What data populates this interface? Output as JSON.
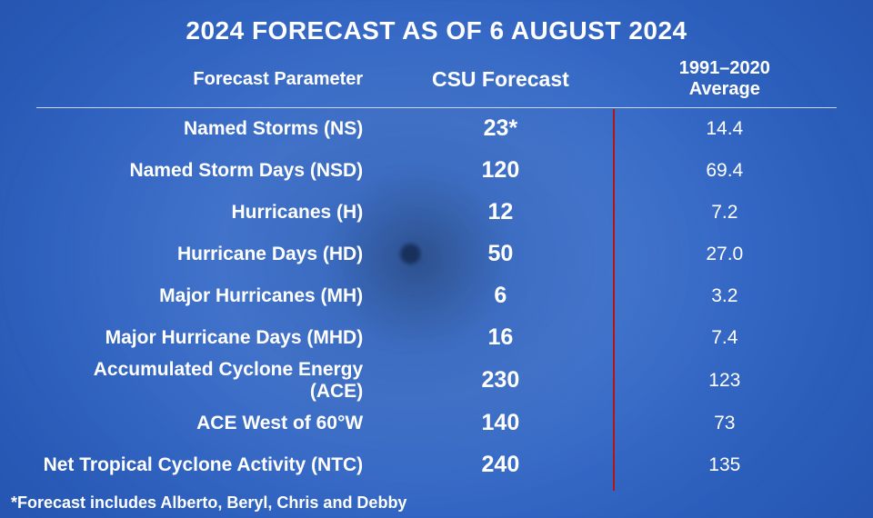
{
  "title": "2024 FORECAST AS OF 6 AUGUST 2024",
  "title_fontsize": 28,
  "title_color": "#ffffff",
  "background_gradient_colors": [
    "#3a73d1",
    "#2f63c2",
    "#2454af",
    "#1d479c"
  ],
  "text_color": "#ffffff",
  "header_rule_color": "#c9d6ef",
  "divider_color": "#b01818",
  "columns": {
    "param": {
      "label": "Forecast Parameter",
      "align": "right",
      "fontsize": 20,
      "weight": 700
    },
    "csu": {
      "label": "CSU Forecast",
      "align": "center",
      "fontsize": 23,
      "weight": 700
    },
    "avg": {
      "label_line1": "1991–2020",
      "label_line2": "Average",
      "align": "center",
      "fontsize": 20,
      "weight": 700
    }
  },
  "row_fontsize_param": 21,
  "row_fontsize_csu": 25,
  "row_fontsize_avg": 21,
  "rows": [
    {
      "param": "Named Storms (NS)",
      "csu": "23*",
      "avg": "14.4"
    },
    {
      "param": "Named Storm Days (NSD)",
      "csu": "120",
      "avg": "69.4"
    },
    {
      "param": "Hurricanes (H)",
      "csu": "12",
      "avg": "7.2"
    },
    {
      "param": "Hurricane Days (HD)",
      "csu": "50",
      "avg": "27.0"
    },
    {
      "param": "Major Hurricanes (MH)",
      "csu": "6",
      "avg": "3.2"
    },
    {
      "param": "Major Hurricane Days (MHD)",
      "csu": "16",
      "avg": "7.4"
    },
    {
      "param": "Accumulated Cyclone Energy (ACE)",
      "csu": "230",
      "avg": "123"
    },
    {
      "param": "ACE West of 60°W",
      "csu": "140",
      "avg": "73"
    },
    {
      "param": "Net Tropical Cyclone Activity (NTC)",
      "csu": "240",
      "avg": "135"
    }
  ],
  "footnote": "*Forecast includes Alberto, Beryl, Chris and Debby",
  "footnote_fontsize": 18
}
